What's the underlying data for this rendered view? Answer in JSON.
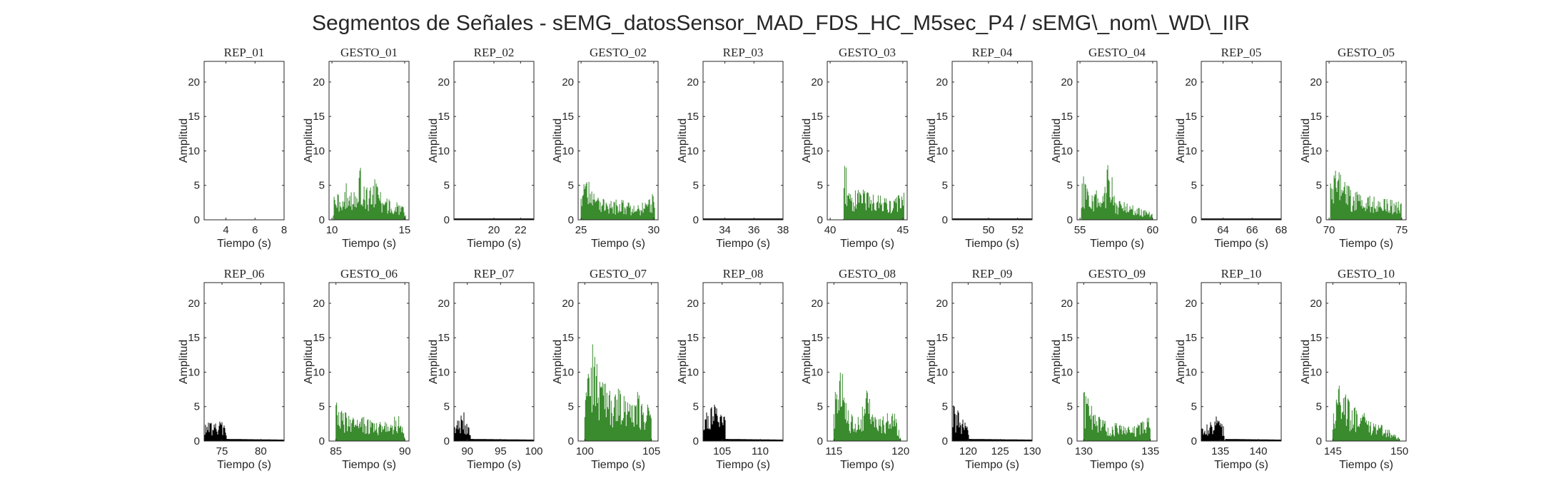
{
  "title": "Segmentos de Señales - sEMG_datosSensor_MAD_FDS_HC_M5sec_P4 / sEMG\\_nom\\_WD\\_IIR",
  "colors": {
    "rep": "#000000",
    "gesto": "#3a8a2e",
    "axis": "#262626"
  },
  "chart_data": [
    {
      "type": "area",
      "title": "REP_01",
      "xlabel": "Tiempo (s)",
      "ylabel": "Amplitud",
      "xlim": [
        2.5,
        8
      ],
      "ylim": [
        0,
        23
      ],
      "xticks": [
        4,
        6,
        8
      ],
      "yticks": [
        0,
        5,
        10,
        15,
        20
      ],
      "kind": "rep",
      "x": [
        2.5,
        8
      ],
      "y": [
        0,
        0
      ]
    },
    {
      "type": "area",
      "title": "GESTO_01",
      "xlabel": "Tiempo (s)",
      "ylabel": "Amplitud",
      "xlim": [
        9.8,
        15.3
      ],
      "ylim": [
        0,
        23
      ],
      "xticks": [
        10,
        15
      ],
      "yticks": [
        0,
        5,
        10,
        15,
        20
      ],
      "kind": "gesto",
      "x": [
        10.1,
        10.5,
        11,
        11.5,
        12,
        12.5,
        13,
        13.5,
        14,
        14.5,
        15.1
      ],
      "y": [
        4.6,
        3.5,
        5.5,
        4.2,
        7.8,
        4,
        6.3,
        3.2,
        3,
        2.6,
        1.5
      ]
    },
    {
      "type": "area",
      "title": "REP_02",
      "xlabel": "Tiempo (s)",
      "ylabel": "Amplitud",
      "xlim": [
        17,
        23
      ],
      "ylim": [
        0,
        23
      ],
      "xticks": [
        20,
        22
      ],
      "yticks": [
        0,
        5,
        10,
        15,
        20
      ],
      "kind": "rep",
      "x": [
        17,
        23
      ],
      "y": [
        0.2,
        0.2
      ]
    },
    {
      "type": "area",
      "title": "GESTO_02",
      "xlabel": "Tiempo (s)",
      "ylabel": "Amplitud",
      "xlim": [
        24.8,
        30.3
      ],
      "ylim": [
        0,
        23
      ],
      "xticks": [
        25,
        30
      ],
      "yticks": [
        0,
        5,
        10,
        15,
        20
      ],
      "kind": "gesto",
      "x": [
        25,
        25.5,
        26,
        26.5,
        27,
        27.5,
        28,
        28.5,
        29,
        29.5,
        30.1
      ],
      "y": [
        4.5,
        6.3,
        3.2,
        3.5,
        2.7,
        3,
        2.8,
        2.2,
        2.4,
        2.6,
        4.3
      ]
    },
    {
      "type": "area",
      "title": "REP_03",
      "xlabel": "Tiempo (s)",
      "ylabel": "Amplitud",
      "xlim": [
        32.5,
        38
      ],
      "ylim": [
        0,
        23
      ],
      "xticks": [
        34,
        36,
        38
      ],
      "yticks": [
        0,
        5,
        10,
        15,
        20
      ],
      "kind": "rep",
      "x": [
        32.5,
        38
      ],
      "y": [
        0.2,
        0.2
      ]
    },
    {
      "type": "area",
      "title": "GESTO_03",
      "xlabel": "Tiempo (s)",
      "ylabel": "Amplitud",
      "xlim": [
        39.8,
        45.3
      ],
      "ylim": [
        0,
        23
      ],
      "xticks": [
        40,
        45
      ],
      "yticks": [
        0,
        5,
        10,
        15,
        20
      ],
      "kind": "gesto",
      "x": [
        40.9,
        41,
        41.5,
        42,
        42.5,
        43,
        43.5,
        44,
        44.5,
        45.1
      ],
      "y": [
        0.1,
        9.3,
        5,
        4.6,
        4.2,
        3.6,
        3.5,
        3.2,
        3.1,
        4.5
      ]
    },
    {
      "type": "area",
      "title": "REP_04",
      "xlabel": "Tiempo (s)",
      "ylabel": "Amplitud",
      "xlim": [
        47.5,
        53
      ],
      "ylim": [
        0,
        23
      ],
      "xticks": [
        50,
        52
      ],
      "yticks": [
        0,
        5,
        10,
        15,
        20
      ],
      "kind": "rep",
      "x": [
        47.5,
        53
      ],
      "y": [
        0.2,
        0.2
      ]
    },
    {
      "type": "area",
      "title": "GESTO_04",
      "xlabel": "Tiempo (s)",
      "ylabel": "Amplitud",
      "xlim": [
        54.8,
        60.3
      ],
      "ylim": [
        0,
        23
      ],
      "xticks": [
        55,
        60
      ],
      "yticks": [
        0,
        5,
        10,
        15,
        20
      ],
      "kind": "gesto",
      "x": [
        55.1,
        55.5,
        56,
        56.5,
        57,
        57.5,
        58,
        58.5,
        59,
        59.5,
        60
      ],
      "y": [
        6.6,
        5.8,
        4.6,
        3.6,
        8.8,
        3,
        2.6,
        2.2,
        1.8,
        1.5,
        1
      ]
    },
    {
      "type": "area",
      "title": "REP_05",
      "xlabel": "Tiempo (s)",
      "ylabel": "Amplitud",
      "xlim": [
        62.5,
        68
      ],
      "ylim": [
        0,
        23
      ],
      "xticks": [
        64,
        66,
        68
      ],
      "yticks": [
        0,
        5,
        10,
        15,
        20
      ],
      "kind": "rep",
      "x": [
        62.5,
        68
      ],
      "y": [
        0.2,
        0.2
      ]
    },
    {
      "type": "area",
      "title": "GESTO_05",
      "xlabel": "Tiempo (s)",
      "ylabel": "Amplitud",
      "xlim": [
        69.8,
        75.3
      ],
      "ylim": [
        0,
        23
      ],
      "xticks": [
        70,
        75
      ],
      "yticks": [
        0,
        5,
        10,
        15,
        20
      ],
      "kind": "gesto",
      "x": [
        70.1,
        70.5,
        71,
        71.5,
        72,
        72.5,
        73,
        73.5,
        74,
        74.5,
        75
      ],
      "y": [
        9.7,
        7.6,
        5.8,
        4.5,
        4,
        3.6,
        3.4,
        3.2,
        3,
        2.8,
        2.5
      ]
    },
    {
      "type": "area",
      "title": "REP_06",
      "xlabel": "Tiempo (s)",
      "ylabel": "Amplitud",
      "xlim": [
        72.7,
        83
      ],
      "ylim": [
        0,
        23
      ],
      "xticks": [
        75,
        80
      ],
      "yticks": [
        0,
        5,
        10,
        15,
        20
      ],
      "kind": "rep",
      "x": [
        72.7,
        73.5,
        74.5,
        75.5,
        75.6,
        83
      ],
      "y": [
        2.8,
        2.6,
        2.9,
        2.6,
        0.3,
        0.2
      ]
    },
    {
      "type": "area",
      "title": "GESTO_06",
      "xlabel": "Tiempo (s)",
      "ylabel": "Amplitud",
      "xlim": [
        84.5,
        90.3
      ],
      "ylim": [
        0,
        23
      ],
      "xticks": [
        85,
        90
      ],
      "yticks": [
        0,
        5,
        10,
        15,
        20
      ],
      "kind": "gesto",
      "x": [
        85,
        85.5,
        86,
        86.5,
        87,
        87.5,
        88,
        88.5,
        89,
        89.5,
        90
      ],
      "y": [
        6.3,
        4.5,
        3.6,
        3.2,
        3.5,
        3,
        2.7,
        3,
        2.6,
        4.5,
        1
      ]
    },
    {
      "type": "area",
      "title": "REP_07",
      "xlabel": "Tiempo (s)",
      "ylabel": "Amplitud",
      "xlim": [
        88,
        100
      ],
      "ylim": [
        0,
        23
      ],
      "xticks": [
        90,
        95,
        100
      ],
      "yticks": [
        0,
        5,
        10,
        15,
        20
      ],
      "kind": "rep",
      "x": [
        88,
        88.7,
        89.5,
        90.4,
        90.5,
        100
      ],
      "y": [
        2.6,
        3.2,
        4.5,
        2.2,
        0.3,
        0.2
      ]
    },
    {
      "type": "area",
      "title": "GESTO_07",
      "xlabel": "Tiempo (s)",
      "ylabel": "Amplitud",
      "xlim": [
        99.5,
        105.5
      ],
      "ylim": [
        0,
        23
      ],
      "xticks": [
        100,
        105
      ],
      "yticks": [
        0,
        5,
        10,
        15,
        20
      ],
      "kind": "gesto",
      "x": [
        100,
        100.5,
        101,
        101.5,
        102,
        102.5,
        103,
        103.5,
        104,
        104.5,
        105
      ],
      "y": [
        9.5,
        14.7,
        11,
        8.5,
        7,
        7.8,
        6.5,
        6,
        7.2,
        5.5,
        5
      ]
    },
    {
      "type": "area",
      "title": "REP_08",
      "xlabel": "Tiempo (s)",
      "ylabel": "Amplitud",
      "xlim": [
        102.5,
        113
      ],
      "ylim": [
        0,
        23
      ],
      "xticks": [
        105,
        110
      ],
      "yticks": [
        0,
        5,
        10,
        15,
        20
      ],
      "kind": "rep",
      "x": [
        102.5,
        103.3,
        104.2,
        104.8,
        105.4,
        105.5,
        113
      ],
      "y": [
        3.5,
        4.6,
        5.5,
        7.5,
        3.3,
        0.3,
        0.2
      ]
    },
    {
      "type": "area",
      "title": "GESTO_08",
      "xlabel": "Tiempo (s)",
      "ylabel": "Amplitud",
      "xlim": [
        114.5,
        120.5
      ],
      "ylim": [
        0,
        23
      ],
      "xticks": [
        115,
        120
      ],
      "yticks": [
        0,
        5,
        10,
        15,
        20
      ],
      "kind": "gesto",
      "x": [
        115,
        115.5,
        116,
        116.5,
        117,
        117.5,
        118,
        118.5,
        119,
        119.5,
        120
      ],
      "y": [
        6,
        12.2,
        5,
        4,
        3.6,
        8.4,
        3.6,
        3.3,
        4,
        5,
        0.5
      ]
    },
    {
      "type": "area",
      "title": "REP_09",
      "xlabel": "Tiempo (s)",
      "ylabel": "Amplitud",
      "xlim": [
        117.5,
        130
      ],
      "ylim": [
        0,
        23
      ],
      "xticks": [
        120,
        125,
        130
      ],
      "yticks": [
        0,
        5,
        10,
        15,
        20
      ],
      "kind": "rep",
      "x": [
        117.5,
        118.2,
        119,
        120,
        120.1,
        130
      ],
      "y": [
        5.3,
        4.8,
        3.3,
        2.2,
        0.3,
        0.2
      ]
    },
    {
      "type": "area",
      "title": "GESTO_09",
      "xlabel": "Tiempo (s)",
      "ylabel": "Amplitud",
      "xlim": [
        129.5,
        135.5
      ],
      "ylim": [
        0,
        23
      ],
      "xticks": [
        130,
        135
      ],
      "yticks": [
        0,
        5,
        10,
        15,
        20
      ],
      "kind": "gesto",
      "x": [
        130,
        130.5,
        131,
        131.5,
        132,
        132.5,
        133,
        133.5,
        134,
        134.5,
        135
      ],
      "y": [
        7.5,
        5.8,
        3.8,
        3,
        2.6,
        2.6,
        2.2,
        2.1,
        2.5,
        3.1,
        3.5
      ]
    },
    {
      "type": "area",
      "title": "REP_10",
      "xlabel": "Tiempo (s)",
      "ylabel": "Amplitud",
      "xlim": [
        132.5,
        143
      ],
      "ylim": [
        0,
        23
      ],
      "xticks": [
        135,
        140
      ],
      "yticks": [
        0,
        5,
        10,
        15,
        20
      ],
      "kind": "rep",
      "x": [
        132.5,
        133.5,
        134.5,
        135.5,
        135.6,
        143
      ],
      "y": [
        2.2,
        2.5,
        3.6,
        2,
        0.3,
        0.2
      ]
    },
    {
      "type": "area",
      "title": "GESTO_10",
      "xlabel": "Tiempo (s)",
      "ylabel": "Amplitud",
      "xlim": [
        144.5,
        150.5
      ],
      "ylim": [
        0,
        23
      ],
      "xticks": [
        145,
        150
      ],
      "yticks": [
        0,
        5,
        10,
        15,
        20
      ],
      "kind": "gesto",
      "x": [
        145,
        145.5,
        146,
        146.5,
        147,
        147.5,
        148,
        148.5,
        149,
        149.5,
        150
      ],
      "y": [
        3.5,
        8.2,
        6.7,
        4.6,
        5.5,
        3.5,
        2.8,
        2.6,
        1.8,
        1.4,
        0.5
      ]
    }
  ]
}
